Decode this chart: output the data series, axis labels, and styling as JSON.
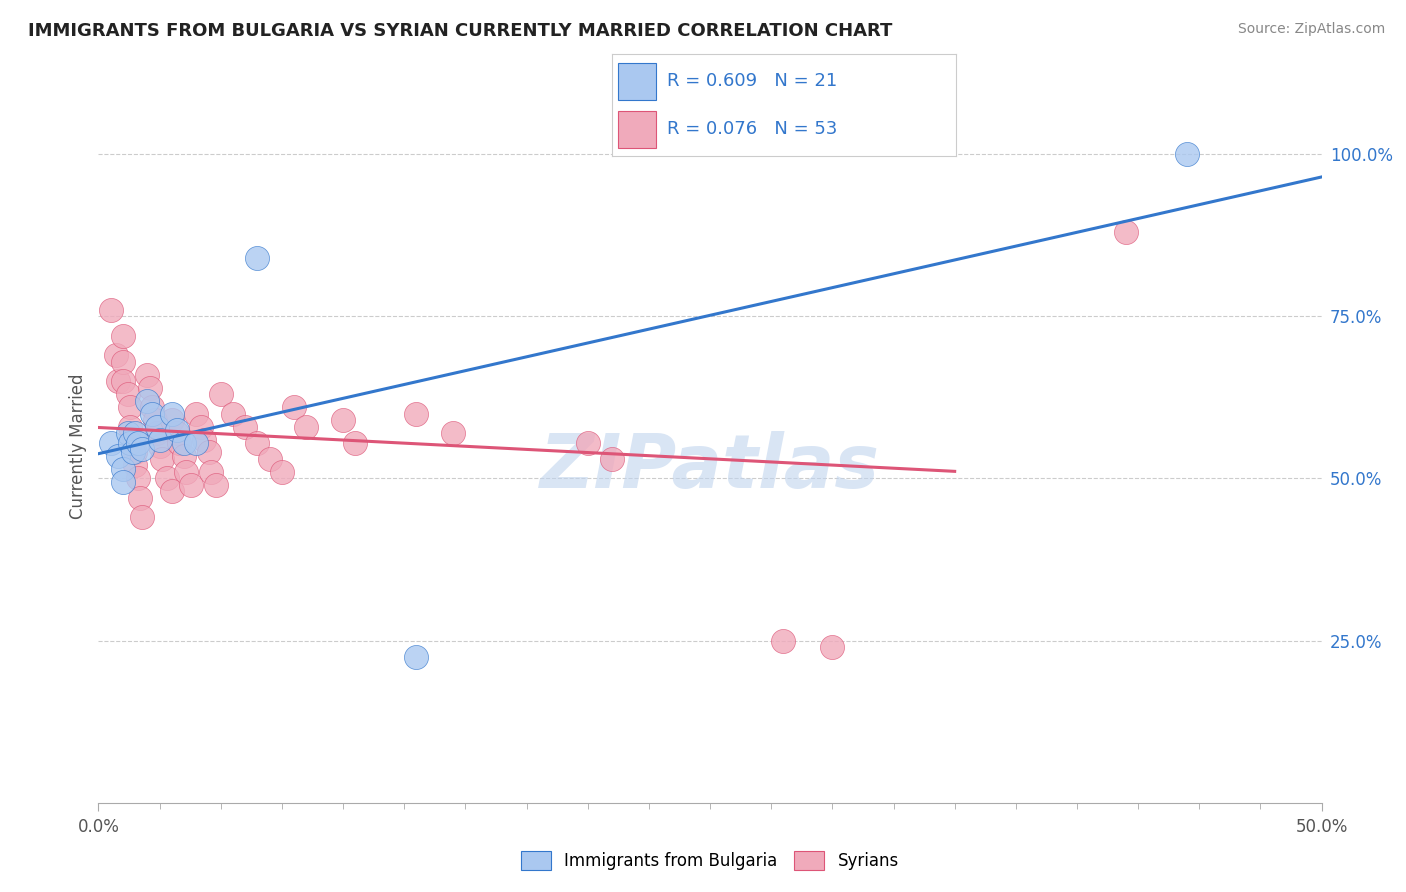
{
  "title": "IMMIGRANTS FROM BULGARIA VS SYRIAN CURRENTLY MARRIED CORRELATION CHART",
  "source": "Source: ZipAtlas.com",
  "ylabel": "Currently Married",
  "xlim": [
    0.0,
    0.5
  ],
  "ylim": [
    0.0,
    1.1
  ],
  "yticks": [
    0.25,
    0.5,
    0.75,
    1.0
  ],
  "ytick_labels": [
    "25.0%",
    "50.0%",
    "75.0%",
    "100.0%"
  ],
  "legend_r1": "R = 0.609",
  "legend_n1": "N = 21",
  "legend_r2": "R = 0.076",
  "legend_n2": "N = 53",
  "legend_label1": "Immigrants from Bulgaria",
  "legend_label2": "Syrians",
  "color_bulgaria": "#aac8f0",
  "color_syria": "#f0aabb",
  "line_color_bulgaria": "#3377cc",
  "line_color_syria": "#dd5577",
  "watermark": "ZIPatlas",
  "watermark_color": "#c0d4ee",
  "bulgaria_points": [
    [
      0.005,
      0.555
    ],
    [
      0.008,
      0.535
    ],
    [
      0.01,
      0.515
    ],
    [
      0.01,
      0.495
    ],
    [
      0.012,
      0.57
    ],
    [
      0.013,
      0.555
    ],
    [
      0.014,
      0.54
    ],
    [
      0.015,
      0.57
    ],
    [
      0.016,
      0.555
    ],
    [
      0.018,
      0.545
    ],
    [
      0.02,
      0.62
    ],
    [
      0.022,
      0.6
    ],
    [
      0.024,
      0.58
    ],
    [
      0.025,
      0.56
    ],
    [
      0.03,
      0.6
    ],
    [
      0.032,
      0.575
    ],
    [
      0.035,
      0.555
    ],
    [
      0.04,
      0.555
    ],
    [
      0.065,
      0.84
    ],
    [
      0.13,
      0.225
    ],
    [
      0.445,
      1.0
    ]
  ],
  "syria_points": [
    [
      0.005,
      0.76
    ],
    [
      0.007,
      0.69
    ],
    [
      0.008,
      0.65
    ],
    [
      0.01,
      0.72
    ],
    [
      0.01,
      0.68
    ],
    [
      0.01,
      0.65
    ],
    [
      0.012,
      0.63
    ],
    [
      0.013,
      0.61
    ],
    [
      0.013,
      0.58
    ],
    [
      0.014,
      0.56
    ],
    [
      0.015,
      0.54
    ],
    [
      0.015,
      0.52
    ],
    [
      0.016,
      0.5
    ],
    [
      0.017,
      0.47
    ],
    [
      0.018,
      0.44
    ],
    [
      0.02,
      0.66
    ],
    [
      0.021,
      0.64
    ],
    [
      0.022,
      0.61
    ],
    [
      0.023,
      0.59
    ],
    [
      0.024,
      0.57
    ],
    [
      0.025,
      0.55
    ],
    [
      0.026,
      0.53
    ],
    [
      0.028,
      0.5
    ],
    [
      0.03,
      0.48
    ],
    [
      0.03,
      0.59
    ],
    [
      0.032,
      0.57
    ],
    [
      0.033,
      0.555
    ],
    [
      0.035,
      0.535
    ],
    [
      0.036,
      0.51
    ],
    [
      0.038,
      0.49
    ],
    [
      0.04,
      0.6
    ],
    [
      0.042,
      0.58
    ],
    [
      0.043,
      0.56
    ],
    [
      0.045,
      0.54
    ],
    [
      0.046,
      0.51
    ],
    [
      0.048,
      0.49
    ],
    [
      0.05,
      0.63
    ],
    [
      0.055,
      0.6
    ],
    [
      0.06,
      0.58
    ],
    [
      0.065,
      0.555
    ],
    [
      0.07,
      0.53
    ],
    [
      0.075,
      0.51
    ],
    [
      0.08,
      0.61
    ],
    [
      0.085,
      0.58
    ],
    [
      0.1,
      0.59
    ],
    [
      0.105,
      0.555
    ],
    [
      0.13,
      0.6
    ],
    [
      0.145,
      0.57
    ],
    [
      0.2,
      0.555
    ],
    [
      0.21,
      0.53
    ],
    [
      0.28,
      0.25
    ],
    [
      0.3,
      0.24
    ],
    [
      0.42,
      0.88
    ]
  ]
}
